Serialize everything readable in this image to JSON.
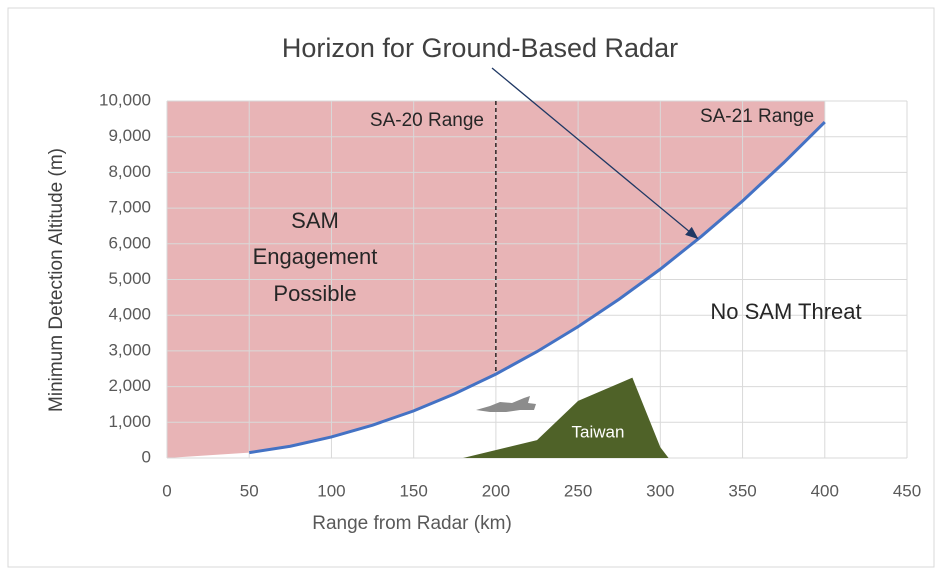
{
  "chart_data": {
    "type": "line",
    "title": "Horizon for Ground-Based Radar",
    "xlabel": "Range from Radar (km)",
    "ylabel": "Minimum Detection Altitude (m)",
    "x": [
      50,
      75,
      100,
      125,
      150,
      175,
      200,
      225,
      250,
      275,
      300,
      325,
      350,
      375,
      400
    ],
    "series": [
      {
        "color": "#4472c4",
        "values": [
          150,
          330,
          590,
          920,
          1320,
          1800,
          2350,
          2980,
          3680,
          4450,
          5290,
          6210,
          7200,
          8270,
          9410
        ]
      }
    ],
    "shade_color": "#e8b4b6",
    "xlim": [
      0,
      450
    ],
    "ylim": [
      0,
      10000
    ],
    "xticks": [
      0,
      50,
      100,
      150,
      200,
      250,
      300,
      350,
      400,
      450
    ],
    "yticks": [
      0,
      {
        "value": 1000,
        "label": "1,000"
      },
      {
        "value": 2000,
        "label": "2,000"
      },
      {
        "value": 3000,
        "label": "3,000"
      },
      {
        "value": 4000,
        "label": "4,000"
      },
      {
        "value": 5000,
        "label": "5,000"
      },
      {
        "value": 6000,
        "label": "6,000"
      },
      {
        "value": 7000,
        "label": "7,000"
      },
      {
        "value": 8000,
        "label": "8,000"
      },
      {
        "value": 9000,
        "label": "9,000"
      },
      {
        "value": 10000,
        "label": "10,000"
      }
    ],
    "grid": true,
    "reference_line": {
      "x": 200,
      "label": "SA-20 Range"
    },
    "annotations": {
      "sa21": "SA-21 Range",
      "engagement": [
        "SAM",
        "Engagement",
        "Possible"
      ],
      "no_threat": "No SAM Threat"
    },
    "terrain": {
      "label": "Taiwan",
      "color": "#4f6228",
      "x": [
        180,
        225,
        250,
        283,
        300,
        305
      ],
      "y": [
        0,
        500,
        1600,
        2250,
        300,
        0
      ]
    }
  }
}
